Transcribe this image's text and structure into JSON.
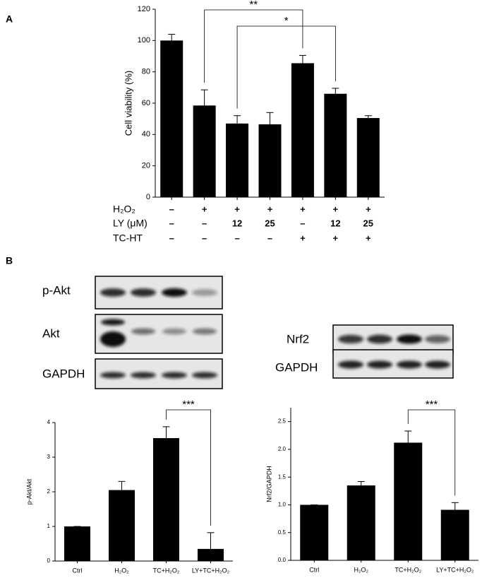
{
  "panel_labels": [
    "A",
    "B"
  ],
  "chart_data": [
    {
      "type": "bar",
      "ylabel": "Cell viability (%)",
      "values": [
        100,
        58.5,
        47,
        46.5,
        85.5,
        66,
        50.5
      ],
      "errors": [
        4,
        10,
        5,
        7.5,
        5,
        3.5,
        1.5
      ],
      "color": "#000000",
      "ylim": [
        0,
        120
      ],
      "yticks": [
        0,
        20,
        40,
        60,
        80,
        100,
        120
      ],
      "brackets": [
        {
          "label": "**",
          "between": [
            1,
            4
          ]
        },
        {
          "label": "*",
          "between": [
            2,
            5
          ]
        }
      ]
    },
    {
      "type": "bar",
      "ylabel": "p-Akt/Akt",
      "categories": [
        "Ctrl",
        "H₂O₂",
        "TC+H₂O₂",
        "LY+TC+H₂O₂"
      ],
      "values": [
        1,
        2.05,
        3.55,
        0.35
      ],
      "errors": [
        0,
        0.25,
        0.33,
        0.47
      ],
      "color": "#000000",
      "ylim": [
        0,
        4
      ],
      "yticks": [
        0,
        1,
        2,
        3,
        4
      ],
      "brackets": [
        {
          "label": "***",
          "between": [
            2,
            3
          ]
        }
      ]
    },
    {
      "type": "bar",
      "ylabel": "Nrf2/GAPDH",
      "categories": [
        "Ctrl",
        "H₂O₂",
        "TC+H₂O₂",
        "LY+TC+H₂O₂"
      ],
      "values": [
        1.0,
        1.35,
        2.12,
        0.91
      ],
      "errors": [
        0,
        0.07,
        0.21,
        0.13
      ],
      "color": "#000000",
      "ylim": [
        0,
        2.75
      ],
      "yticks": [
        {
          "value": 0,
          "label": "0.0"
        },
        0.5,
        {
          "value": 1,
          "label": "1.0"
        },
        1.5,
        {
          "value": 2,
          "label": "2.0"
        },
        2.5
      ],
      "brackets": [
        {
          "label": "***",
          "between": [
            2,
            3
          ]
        }
      ]
    }
  ],
  "treatment_table": {
    "rows": [
      {
        "label": "H₂O₂",
        "cells": [
          "–",
          "+",
          "+",
          "+",
          "+",
          "+",
          "+"
        ]
      },
      {
        "label": "LY (μM)",
        "cells": [
          "–",
          "–",
          "12",
          "25",
          "–",
          "12",
          "25"
        ]
      },
      {
        "label": "TC-HT",
        "cells": [
          "–",
          "–",
          "–",
          "–",
          "+",
          "+",
          "+"
        ]
      }
    ]
  },
  "blots": {
    "left": [
      "p-Akt",
      "Akt",
      "GAPDH"
    ],
    "right": [
      "Nrf2",
      "GAPDH"
    ]
  }
}
